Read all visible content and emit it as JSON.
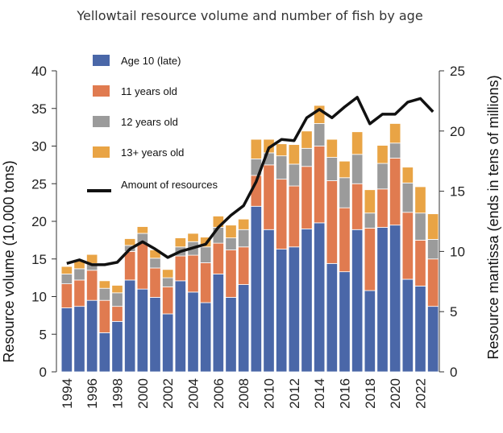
{
  "chart_data": {
    "type": "bar",
    "stacked": true,
    "title": "Yellowtail resource volume and number of fish by age",
    "ylabel": "Resource volume (10,000 tons)",
    "y2label": "Resource mantissa (ends in tens of millions)",
    "ylim": [
      0,
      40
    ],
    "y2lim": [
      0,
      25
    ],
    "yticks": [
      "0",
      "5",
      "10",
      "15",
      "20",
      "25",
      "30",
      "35",
      "40"
    ],
    "y2ticks": [
      "0",
      "5",
      "10",
      "15",
      "20",
      "25"
    ],
    "xtick_labels": [
      "1994",
      "1996",
      "1998",
      "2000",
      "2002",
      "2004",
      "2006",
      "2008",
      "2010",
      "2012",
      "2014",
      "2016",
      "2018",
      "2020",
      "2022"
    ],
    "categories": [
      1994,
      1995,
      1996,
      1997,
      1998,
      1999,
      2000,
      2001,
      2002,
      2003,
      2004,
      2005,
      2006,
      2007,
      2008,
      2009,
      2010,
      2011,
      2012,
      2013,
      2014,
      2015,
      2016,
      2017,
      2018,
      2019,
      2020,
      2021,
      2022,
      2023
    ],
    "series": [
      {
        "name": "Age 10 (late)",
        "color": "#4a67a8",
        "values": [
          8.5,
          8.7,
          9.5,
          5.2,
          6.7,
          12.2,
          11.0,
          9.9,
          7.7,
          12.1,
          10.6,
          9.2,
          13.0,
          9.9,
          11.6,
          22.0,
          18.9,
          16.3,
          16.6,
          19.0,
          19.8,
          14.4,
          13.3,
          18.9,
          10.8,
          19.2,
          19.5,
          12.3,
          11.4,
          8.7
        ]
      },
      {
        "name": "11 years old",
        "color": "#e07b50",
        "values": [
          3.2,
          3.5,
          4.0,
          4.3,
          2.0,
          3.8,
          6.1,
          3.9,
          3.6,
          3.3,
          4.9,
          5.3,
          4.1,
          6.3,
          5.0,
          4.1,
          8.6,
          9.3,
          8.1,
          8.3,
          10.2,
          11.0,
          8.5,
          6.1,
          8.3,
          5.1,
          8.9,
          8.9,
          6.1,
          6.3
        ]
      },
      {
        "name": "12 years old",
        "color": "#9b9b9b",
        "values": [
          1.3,
          1.5,
          0.9,
          1.6,
          1.8,
          0.8,
          1.3,
          1.3,
          1.2,
          1.2,
          1.8,
          2.1,
          2.1,
          1.6,
          2.3,
          2.2,
          1.6,
          3.1,
          2.9,
          2.4,
          3.0,
          3.1,
          4.0,
          3.9,
          2.0,
          3.4,
          2.0,
          3.9,
          3.6,
          2.6
        ]
      },
      {
        "name": "13+ years old",
        "color": "#e9a445",
        "values": [
          1.0,
          1.1,
          1.2,
          1.0,
          1.0,
          0.9,
          0.9,
          1.1,
          1.1,
          1.2,
          1.1,
          1.3,
          1.5,
          1.7,
          1.4,
          2.6,
          1.8,
          1.6,
          2.6,
          2.3,
          2.4,
          2.4,
          2.2,
          3.0,
          3.1,
          2.4,
          2.6,
          2.1,
          3.5,
          3.4
        ]
      }
    ],
    "line_series": {
      "name": "Amount of resources",
      "color": "#111111",
      "axis": "right",
      "values": [
        9.0,
        9.3,
        8.9,
        8.9,
        9.1,
        10.2,
        10.8,
        10.2,
        9.5,
        10.0,
        10.3,
        10.6,
        12.0,
        13.0,
        13.8,
        15.8,
        18.6,
        19.3,
        19.2,
        21.1,
        21.8,
        21.1,
        22.0,
        22.8,
        20.6,
        21.4,
        21.4,
        22.4,
        22.7,
        21.6
      ]
    },
    "legend_position": "top-left",
    "legend": [
      "Age 10 (late)",
      "11 years old",
      "12 years old",
      "13+ years old",
      "Amount of resources"
    ],
    "grid": false
  }
}
